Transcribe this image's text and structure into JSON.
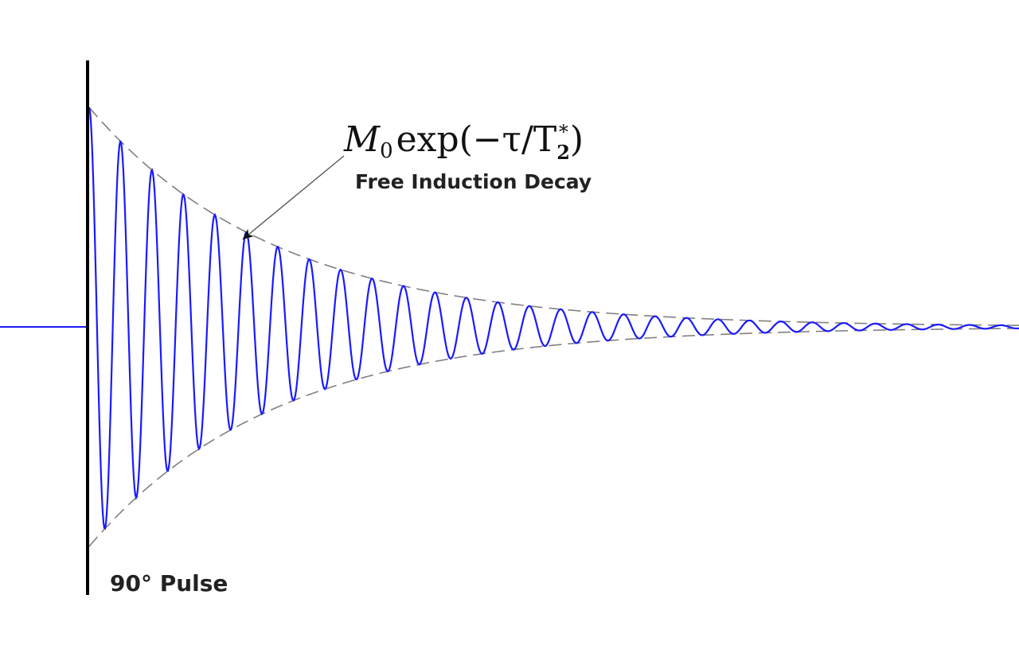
{
  "labels": {
    "formula_main": "M",
    "formula_sub0": "0",
    "formula_rest": "exp(−τ/T",
    "formula_sub2": "2",
    "formula_sup": "*",
    "formula_close": ")",
    "caption": "Free Induction Decay",
    "pulse": "90° Pulse"
  },
  "colors": {
    "signal": "#1a1aff",
    "envelope": "#808080",
    "pulse_line": "#000000",
    "arrow": "#555555",
    "text": "#222222"
  }
}
